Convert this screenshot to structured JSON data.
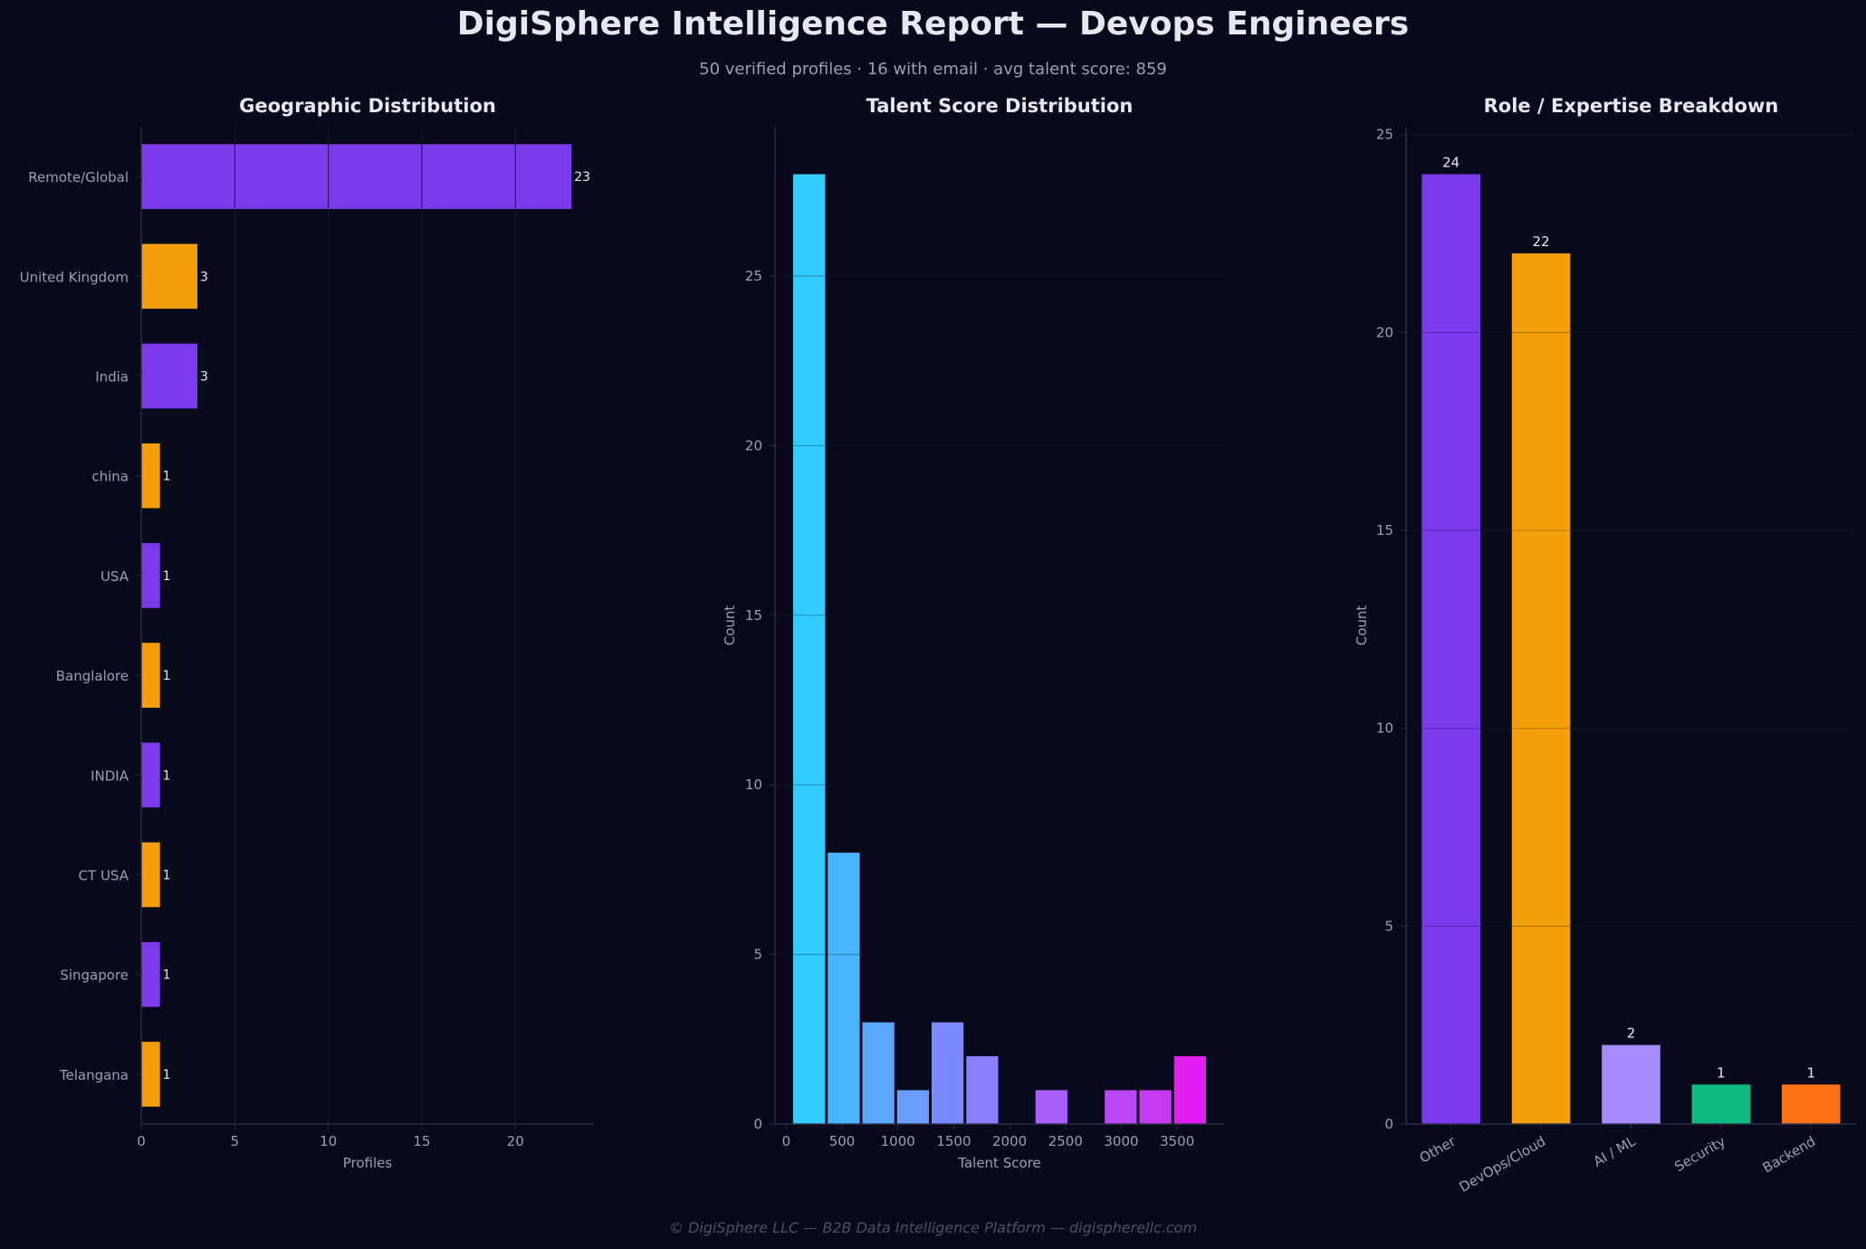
{
  "header": {
    "title": "DigiSphere Intelligence Report — Devops Engineers",
    "subtitle": "50 verified profiles  ·  16 with email  ·  avg talent score: 859"
  },
  "footer": "© DigiSphere LLC — B2B Data Intelligence Platform — digispherellc.com",
  "colors": {
    "background": "#070a1a",
    "purple": "#7c3aed",
    "orange": "#f59e0b",
    "axis": "#2a2e44",
    "grid": "#151a2e",
    "tick_text": "#9aa0b4",
    "title_text": "#e6e8f0"
  },
  "chart_data": [
    {
      "type": "bar",
      "orientation": "horizontal",
      "title": "Geographic Distribution",
      "xlabel": "Profiles",
      "ylabel": "",
      "categories": [
        "Remote/Global",
        "United Kingdom",
        "India",
        "china",
        "USA",
        "Banglalore",
        "INDIA",
        "CT USA",
        "Singapore",
        "Telangana"
      ],
      "values": [
        23,
        3,
        3,
        1,
        1,
        1,
        1,
        1,
        1,
        1
      ],
      "bar_colors": [
        "#7c3aed",
        "#f59e0b",
        "#7c3aed",
        "#f59e0b",
        "#7c3aed",
        "#f59e0b",
        "#7c3aed",
        "#f59e0b",
        "#7c3aed",
        "#f59e0b"
      ],
      "xlim": [
        0,
        24.2
      ],
      "xticks": [
        0,
        5,
        10,
        15,
        20
      ],
      "grid": "vertical"
    },
    {
      "type": "histogram",
      "title": "Talent Score Distribution",
      "xlabel": "Talent Score",
      "ylabel": "Count",
      "bins": [
        {
          "from": 50,
          "to": 360,
          "count": 28,
          "color": "#33ccff"
        },
        {
          "from": 360,
          "to": 670,
          "count": 8,
          "color": "#49b6ff"
        },
        {
          "from": 670,
          "to": 980,
          "count": 3,
          "color": "#5ba7ff"
        },
        {
          "from": 980,
          "to": 1290,
          "count": 1,
          "color": "#6a9bff"
        },
        {
          "from": 1290,
          "to": 1600,
          "count": 3,
          "color": "#7b8bff"
        },
        {
          "from": 1600,
          "to": 1910,
          "count": 2,
          "color": "#8a7fff"
        },
        {
          "from": 1910,
          "to": 2220,
          "count": 0,
          "color": "#9a6fff"
        },
        {
          "from": 2220,
          "to": 2530,
          "count": 1,
          "color": "#a65ff9"
        },
        {
          "from": 2530,
          "to": 2840,
          "count": 0,
          "color": "#b052f5"
        },
        {
          "from": 2840,
          "to": 3150,
          "count": 1,
          "color": "#bb46f3"
        },
        {
          "from": 3150,
          "to": 3460,
          "count": 1,
          "color": "#c83af1"
        },
        {
          "from": 3460,
          "to": 3770,
          "count": 2,
          "color": "#e11ff2"
        }
      ],
      "xlim": [
        -100,
        3920
      ],
      "ylim": [
        0,
        29.4
      ],
      "xticks": [
        0,
        500,
        1000,
        1500,
        2000,
        2500,
        3000,
        3500
      ],
      "yticks": [
        0,
        5,
        10,
        15,
        20,
        25
      ],
      "grid": "horizontal"
    },
    {
      "type": "bar",
      "title": "Role / Expertise Breakdown",
      "xlabel": "",
      "ylabel": "Count",
      "categories": [
        "Other",
        "DevOps/Cloud",
        "AI / ML",
        "Security",
        "Backend"
      ],
      "values": [
        24,
        22,
        2,
        1,
        1
      ],
      "bar_colors": [
        "#7c3aed",
        "#f59e0b",
        "#a78bfa",
        "#10b981",
        "#f97316"
      ],
      "ylim": [
        0,
        25.2
      ],
      "yticks": [
        0,
        5,
        10,
        15,
        20,
        25
      ],
      "grid": "horizontal",
      "xtick_rotation": "30-degrees"
    }
  ]
}
